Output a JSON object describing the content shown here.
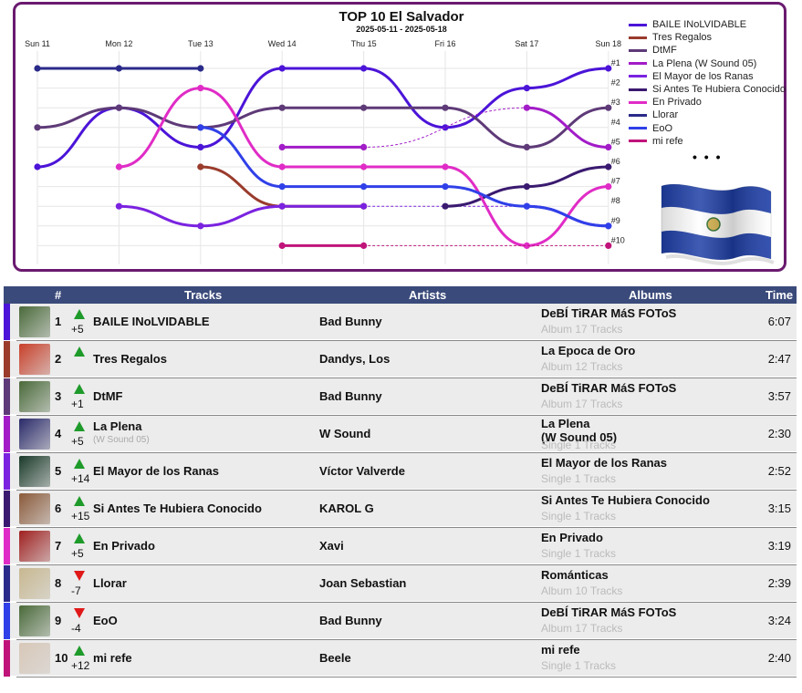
{
  "chart": {
    "title": "TOP 10 El Salvador",
    "subtitle": "2025-05-11 - 2025-05-18",
    "more": "• • •"
  },
  "chart_data": {
    "type": "line",
    "x": [
      "Sun 11",
      "Mon 12",
      "Tue 13",
      "Wed 14",
      "Thu 15",
      "Fri 16",
      "Sat 17",
      "Sun 18"
    ],
    "rank_labels": [
      "#1",
      "#2",
      "#3",
      "#4",
      "#5",
      "#6",
      "#7",
      "#8",
      "#9",
      "#10"
    ],
    "y_direction": "rank (1 at top)",
    "ylim": [
      1,
      10
    ],
    "series": [
      {
        "name": "BAILE INoLVIDABLE",
        "color": "#4b14d8",
        "ranks": [
          6,
          3,
          5,
          1,
          1,
          4,
          2,
          1
        ]
      },
      {
        "name": "Tres Regalos",
        "color": "#9a3b2c",
        "ranks": [
          null,
          null,
          6,
          8,
          8,
          null,
          null,
          null
        ]
      },
      {
        "name": "DtMF",
        "color": "#5e3a78",
        "ranks": [
          4,
          3,
          4,
          3,
          3,
          3,
          5,
          3
        ]
      },
      {
        "name": "La Plena (W Sound 05)",
        "color": "#a21cc8",
        "ranks": [
          null,
          null,
          null,
          5,
          5,
          null,
          3,
          5
        ]
      },
      {
        "name": "El Mayor de los Ranas",
        "color": "#7a22e0",
        "ranks": [
          null,
          8,
          9,
          8,
          8,
          null,
          8,
          9
        ]
      },
      {
        "name": "Si Antes Te Hubiera Conocido",
        "color": "#3a1a70",
        "ranks": [
          null,
          null,
          null,
          null,
          null,
          8,
          7,
          6
        ]
      },
      {
        "name": "En Privado",
        "color": "#e02cc6",
        "ranks": [
          null,
          6,
          2,
          6,
          6,
          6,
          10,
          7
        ]
      },
      {
        "name": "Llorar",
        "color": "#2a2a8a",
        "ranks": [
          1,
          1,
          1,
          null,
          null,
          null,
          null,
          null
        ]
      },
      {
        "name": "EoO",
        "color": "#3040e8",
        "ranks": [
          null,
          null,
          4,
          7,
          7,
          7,
          8,
          9
        ]
      },
      {
        "name": "mi refe",
        "color": "#c0147a",
        "ranks": [
          null,
          null,
          null,
          10,
          10,
          null,
          null,
          10
        ]
      }
    ]
  },
  "table": {
    "headers": {
      "rank": "#",
      "tracks": "Tracks",
      "artists": "Artists",
      "albums": "Albums",
      "time": "Time"
    },
    "rows": [
      {
        "rank": "1",
        "dir": "up",
        "delta": "+5",
        "track": "BAILE INoLVIDABLE",
        "track_sub": "",
        "artist": "Bad Bunny",
        "album": "DeBÍ TiRAR MáS FOToS",
        "album_sub": "Album 17 Tracks",
        "time": "6:07",
        "stripe": "#4b14d8",
        "cover": "#4a6a3a"
      },
      {
        "rank": "2",
        "dir": "up",
        "delta": "",
        "track": "Tres Regalos",
        "track_sub": "",
        "artist": "Dandys, Los",
        "album": "La Epoca de Oro",
        "album_sub": "Album 12 Tracks",
        "time": "2:47",
        "stripe": "#9a3b2c",
        "cover": "#c8402a"
      },
      {
        "rank": "3",
        "dir": "up",
        "delta": "+1",
        "track": "DtMF",
        "track_sub": "",
        "artist": "Bad Bunny",
        "album": "DeBÍ TiRAR MáS FOToS",
        "album_sub": "Album 17 Tracks",
        "time": "3:57",
        "stripe": "#5e3a78",
        "cover": "#4a6a3a"
      },
      {
        "rank": "4",
        "dir": "up",
        "delta": "+5",
        "track": "La Plena",
        "track_sub": "(W Sound 05)",
        "artist": "W Sound",
        "album": "La Plena",
        "album2": "(W Sound 05)",
        "album_sub": "Single 1 Tracks",
        "time": "2:30",
        "stripe": "#a21cc8",
        "cover": "#2a2a6a"
      },
      {
        "rank": "5",
        "dir": "up",
        "delta": "+14",
        "track": "El Mayor de los Ranas",
        "track_sub": "",
        "artist": "Víctor Valverde",
        "album": "El Mayor de los Ranas",
        "album_sub": "Single 1 Tracks",
        "time": "2:52",
        "stripe": "#7a22e0",
        "cover": "#1a3a2a"
      },
      {
        "rank": "6",
        "dir": "up",
        "delta": "+15",
        "track": "Si Antes Te Hubiera Conocido",
        "track_sub": "",
        "artist": "KAROL G",
        "album": "Si Antes Te Hubiera Conocido",
        "album_sub": "Single 1 Tracks",
        "time": "3:15",
        "stripe": "#3a1a70",
        "cover": "#8a5a3a"
      },
      {
        "rank": "7",
        "dir": "up",
        "delta": "+5",
        "track": "En Privado",
        "track_sub": "",
        "artist": "Xavi",
        "album": "En Privado",
        "album_sub": "Single 1 Tracks",
        "time": "3:19",
        "stripe": "#e02cc6",
        "cover": "#a02020"
      },
      {
        "rank": "8",
        "dir": "down",
        "delta": "-7",
        "track": "Llorar",
        "track_sub": "",
        "artist": "Joan Sebastian",
        "album": "Románticas",
        "album_sub": "Album 10 Tracks",
        "time": "2:39",
        "stripe": "#2a2a8a",
        "cover": "#c8b890"
      },
      {
        "rank": "9",
        "dir": "down",
        "delta": "-4",
        "track": "EoO",
        "track_sub": "",
        "artist": "Bad Bunny",
        "album": "DeBÍ TiRAR MáS FOToS",
        "album_sub": "Album 17 Tracks",
        "time": "3:24",
        "stripe": "#3040e8",
        "cover": "#4a6a3a"
      },
      {
        "rank": "10",
        "dir": "up",
        "delta": "+12",
        "track": "mi refe",
        "track_sub": "",
        "artist": "Beele",
        "album": "mi refe",
        "album_sub": "Single 1 Tracks",
        "time": "2:40",
        "stripe": "#c0147a",
        "cover": "#d8c8b8"
      }
    ]
  }
}
